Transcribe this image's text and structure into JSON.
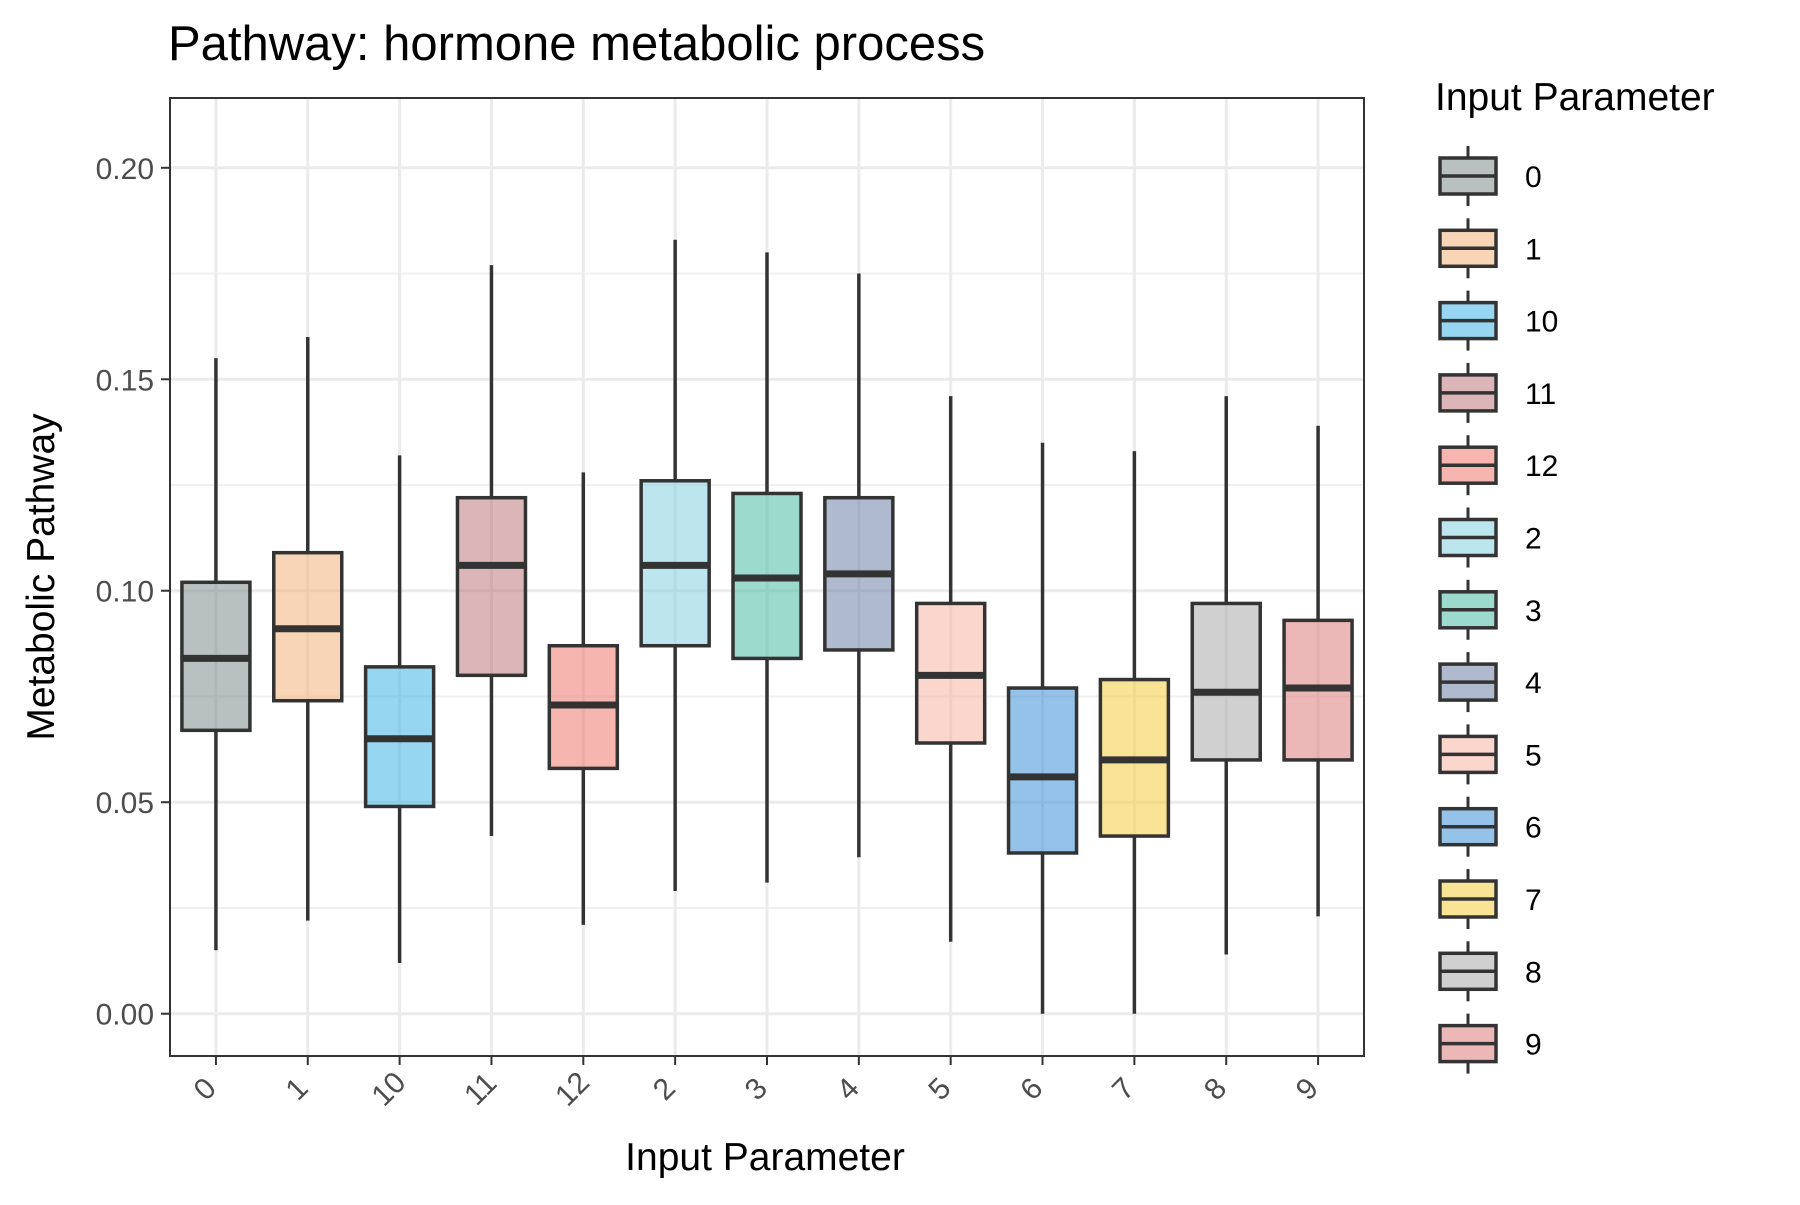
{
  "chart_data": {
    "type": "boxplot",
    "title": "Pathway: hormone metabolic process",
    "xlabel": "Input Parameter",
    "ylabel": "Metabolic Pathway",
    "ylim": [
      -0.01,
      0.2165
    ],
    "yticks": [
      0.0,
      0.05,
      0.1,
      0.15,
      0.2
    ],
    "ytick_labels": [
      "0.00",
      "0.05",
      "0.10",
      "0.15",
      "0.20"
    ],
    "grid": true,
    "legend": {
      "title": "Input Parameter",
      "position": "right"
    },
    "categories": [
      "0",
      "1",
      "10",
      "11",
      "12",
      "2",
      "3",
      "4",
      "5",
      "6",
      "7",
      "8",
      "9"
    ],
    "boxes": [
      {
        "label": "0",
        "whisker_low": 0.015,
        "q1": 0.067,
        "median": 0.084,
        "q3": 0.102,
        "whisker_high": 0.155,
        "color": "#7f8c8d"
      },
      {
        "label": "1",
        "whisker_low": 0.022,
        "q1": 0.074,
        "median": 0.091,
        "q3": 0.109,
        "whisker_high": 0.16,
        "color": "#f0b27a"
      },
      {
        "label": "10",
        "whisker_low": 0.012,
        "q1": 0.049,
        "median": 0.065,
        "q3": 0.082,
        "whisker_high": 0.132,
        "color": "#3fb5e6"
      },
      {
        "label": "11",
        "whisker_low": 0.042,
        "q1": 0.08,
        "median": 0.106,
        "q3": 0.122,
        "whisker_high": 0.177,
        "color": "#c0797f"
      },
      {
        "label": "12",
        "whisker_low": 0.021,
        "q1": 0.058,
        "median": 0.073,
        "q3": 0.087,
        "whisker_high": 0.128,
        "color": "#ef7a6e"
      },
      {
        "label": "2",
        "whisker_low": 0.029,
        "q1": 0.087,
        "median": 0.106,
        "q3": 0.126,
        "whisker_high": 0.183,
        "color": "#85cfe0"
      },
      {
        "label": "3",
        "whisker_low": 0.031,
        "q1": 0.084,
        "median": 0.103,
        "q3": 0.123,
        "whisker_high": 0.18,
        "color": "#48bba2"
      },
      {
        "label": "4",
        "whisker_low": 0.037,
        "q1": 0.086,
        "median": 0.104,
        "q3": 0.122,
        "whisker_high": 0.175,
        "color": "#7081a8"
      },
      {
        "label": "5",
        "whisker_low": 0.017,
        "q1": 0.064,
        "median": 0.08,
        "q3": 0.097,
        "whisker_high": 0.146,
        "color": "#f5b5a4"
      },
      {
        "label": "6",
        "whisker_low": 0.0,
        "q1": 0.038,
        "median": 0.056,
        "q3": 0.077,
        "whisker_high": 0.135,
        "color": "#3d8fd6"
      },
      {
        "label": "7",
        "whisker_low": 0.0,
        "q1": 0.042,
        "median": 0.06,
        "q3": 0.079,
        "whisker_high": 0.133,
        "color": "#f2cd3c"
      },
      {
        "label": "8",
        "whisker_low": 0.014,
        "q1": 0.06,
        "median": 0.076,
        "q3": 0.097,
        "whisker_high": 0.146,
        "color": "#a9a9a9"
      },
      {
        "label": "9",
        "whisker_low": 0.023,
        "q1": 0.06,
        "median": 0.077,
        "q3": 0.093,
        "whisker_high": 0.139,
        "color": "#dc7c7c"
      }
    ]
  }
}
